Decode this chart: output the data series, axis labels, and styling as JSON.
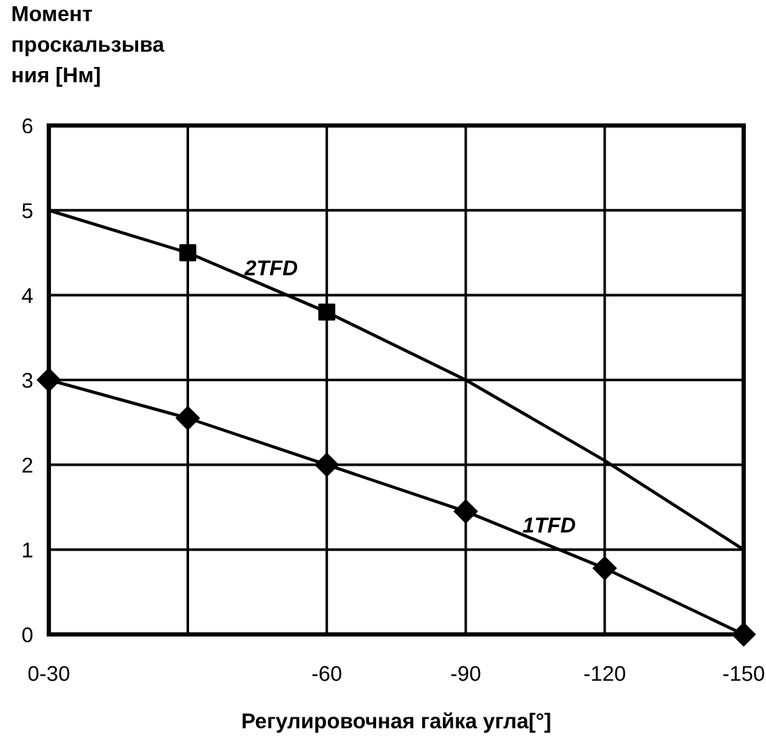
{
  "chart_data": {
    "type": "line",
    "ylabel": "Момент\nпроскальзыва\nния [Нм]",
    "xlabel": "Регулировочная гайка угла[°]",
    "categories": [
      "0-30",
      null,
      "-60",
      "-90",
      "-120",
      "-150"
    ],
    "series": [
      {
        "name": "2TFD",
        "color": "#000000",
        "marker": "none",
        "values": [
          5,
          4.5,
          3.8,
          3.0,
          2.05,
          1.0
        ]
      },
      {
        "type": "scatter",
        "color": "#000000",
        "marker": "square",
        "values": [
          null,
          4.5,
          3.8,
          null,
          null,
          null
        ]
      },
      {
        "name": "1TFD",
        "color": "#000000",
        "marker": "diamond",
        "values": [
          3,
          2.55,
          2.0,
          1.45,
          0.78,
          0
        ]
      }
    ],
    "ylim": [
      0,
      6
    ],
    "yticks": [
      0,
      1,
      2,
      3,
      4,
      5,
      6
    ],
    "grid": true,
    "legend": false
  }
}
